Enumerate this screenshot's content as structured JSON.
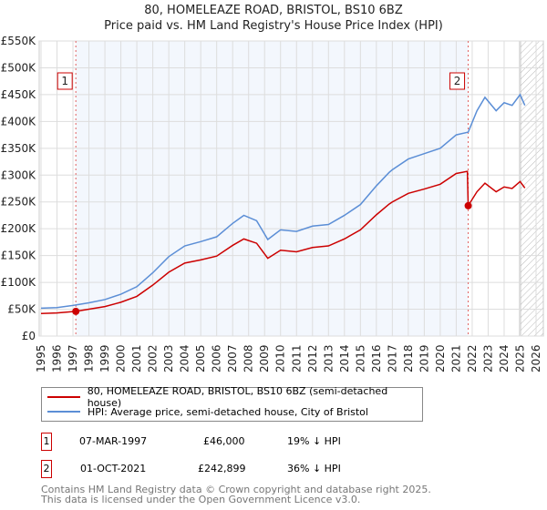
{
  "title": "80, HOMELEAZE ROAD, BRISTOL, BS10 6BZ",
  "subtitle": "Price paid vs. HM Land Registry's House Price Index (HPI)",
  "chart_data": {
    "type": "line",
    "ylim": [
      0,
      550000
    ],
    "xlim": [
      1995,
      2026
    ],
    "yticks": [
      "£0",
      "£50K",
      "£100K",
      "£150K",
      "£200K",
      "£250K",
      "£300K",
      "£350K",
      "£400K",
      "£450K",
      "£500K",
      "£550K"
    ],
    "xticks": [
      "1995",
      "1996",
      "1997",
      "1998",
      "1999",
      "2000",
      "2001",
      "2002",
      "2003",
      "2004",
      "2005",
      "2006",
      "2007",
      "2008",
      "2009",
      "2010",
      "2011",
      "2012",
      "2013",
      "2014",
      "2015",
      "2016",
      "2017",
      "2018",
      "2019",
      "2020",
      "2021",
      "2022",
      "2023",
      "2024",
      "2025",
      "2026"
    ],
    "series": [
      {
        "name": "80, HOMELEAZE ROAD, BRISTOL, BS10 6BZ (semi-detached house)",
        "color": "#cc0000",
        "x": [
          1995,
          1996,
          1997.18,
          1998,
          1999,
          2000,
          2001,
          2002,
          2003,
          2004,
          2005,
          2006,
          2007,
          2007.7,
          2008.5,
          2009.2,
          2010,
          2011,
          2012,
          2013,
          2014,
          2015,
          2016,
          2016.8,
          2017,
          2018,
          2019,
          2020,
          2021,
          2021.7,
          2021.75,
          2022.3,
          2022.8,
          2023.5,
          2024,
          2024.5,
          2025,
          2025.3
        ],
        "y": [
          42000,
          43000,
          46000,
          50000,
          55000,
          63000,
          74000,
          95000,
          119000,
          136000,
          142000,
          149000,
          169000,
          181000,
          173000,
          145000,
          160000,
          157000,
          165000,
          168000,
          181000,
          198000,
          226000,
          246000,
          250000,
          266000,
          274000,
          283000,
          303000,
          307000,
          242899,
          269000,
          285000,
          269000,
          278000,
          275000,
          288000,
          276000
        ]
      },
      {
        "name": "HPI: Average price, semi-detached house, City of Bristol",
        "color": "#5b8ed6",
        "x": [
          1995,
          1996,
          1997,
          1998,
          1999,
          2000,
          2001,
          2002,
          2003,
          2004,
          2005,
          2006,
          2007,
          2007.7,
          2008.5,
          2009.2,
          2010,
          2011,
          2012,
          2013,
          2014,
          2015,
          2016,
          2016.8,
          2017,
          2018,
          2019,
          2020,
          2021,
          2021.75,
          2022.3,
          2022.8,
          2023.5,
          2024,
          2024.5,
          2025,
          2025.3
        ],
        "y": [
          52000,
          53000,
          57000,
          62000,
          68000,
          78000,
          92000,
          118000,
          148000,
          168000,
          176000,
          185000,
          210000,
          225000,
          215000,
          180000,
          198000,
          195000,
          205000,
          208000,
          225000,
          245000,
          280000,
          305000,
          310000,
          330000,
          340000,
          350000,
          375000,
          380000,
          420000,
          445000,
          420000,
          435000,
          430000,
          450000,
          430000
        ]
      }
    ],
    "sales": [
      {
        "label": "1",
        "x": 1997.18,
        "y": 46000
      },
      {
        "label": "2",
        "x": 2021.75,
        "y": 242899
      }
    ]
  },
  "transactions": [
    {
      "num": "1",
      "date": "07-MAR-1997",
      "price": "£46,000",
      "hpi": "19% ↓ HPI"
    },
    {
      "num": "2",
      "date": "01-OCT-2021",
      "price": "£242,899",
      "hpi": "36% ↓ HPI"
    }
  ],
  "footer": [
    "Contains HM Land Registry data © Crown copyright and database right 2025.",
    "This data is licensed under the Open Government Licence v3.0."
  ]
}
